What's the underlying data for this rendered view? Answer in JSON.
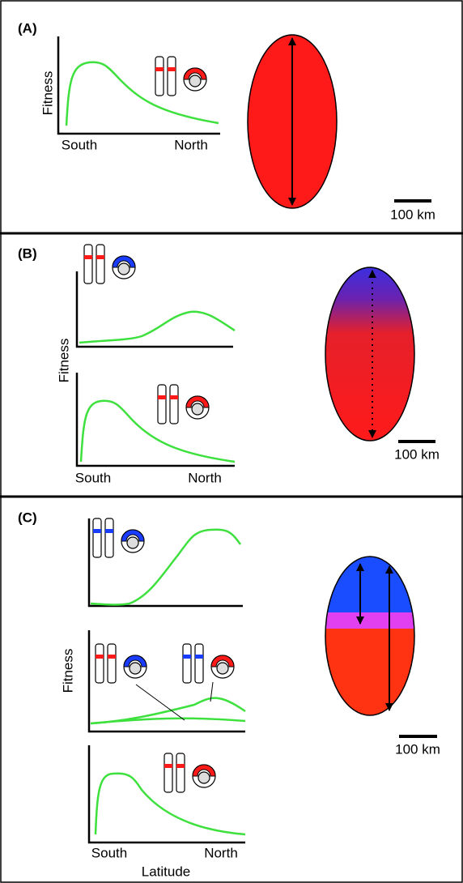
{
  "panels": [
    {
      "label": "(A)",
      "y_label": "Fitness",
      "x_labels": [
        "South",
        "North"
      ],
      "scale_bar": "100 km"
    },
    {
      "label": "(B)",
      "y_label": "Fitness",
      "x_labels": [
        "South",
        "North"
      ],
      "scale_bar": "100 km"
    },
    {
      "label": "(C)",
      "y_label": "Fitness",
      "x_labels": [
        "South",
        "North"
      ],
      "x_title": "Latitude",
      "scale_bar": "100 km"
    }
  ]
}
